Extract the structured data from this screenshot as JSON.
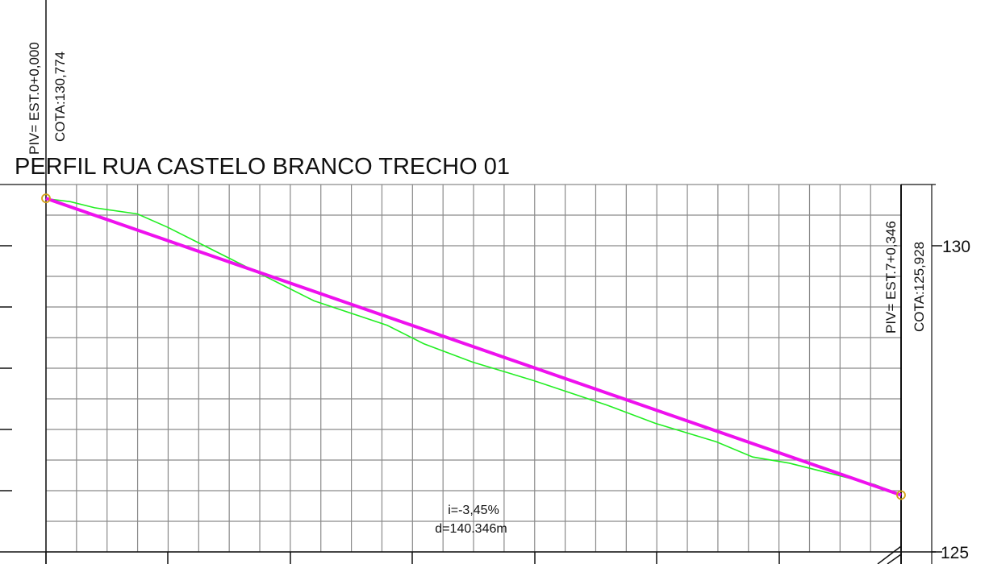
{
  "title": "PERFIL RUA CASTELO BRANCO TRECHO 01",
  "piv_start": {
    "station": "PIV= EST.0+0,000",
    "elevation": "COTA:130,774"
  },
  "piv_end": {
    "station": "PIV= EST.7+0,346",
    "elevation": "COTA:125,928"
  },
  "slope": {
    "grade": "i=-3,45%",
    "distance": "d=140.346m"
  },
  "axis": {
    "label_130": "130",
    "label_125": "125"
  },
  "colors": {
    "grid": "#8a8a8a",
    "terrain": "#22ee22",
    "grade_line": "#ee11ee",
    "piv_marker": "#d4a017",
    "ink": "#111111"
  },
  "chart_data": {
    "type": "line",
    "title": "PERFIL RUA CASTELO BRANCO TRECHO 01",
    "xlabel": "",
    "ylabel": "",
    "xlim": [
      0,
      140.346
    ],
    "ylim": [
      125,
      131.1
    ],
    "yticks": [
      125,
      130
    ],
    "series": [
      {
        "x": [
          0,
          4,
          8,
          15,
          20,
          28,
          36,
          44,
          56,
          62,
          70,
          80,
          92,
          100,
          110,
          116,
          122,
          128,
          136,
          140.346
        ],
        "y": [
          130.77,
          130.72,
          130.62,
          130.52,
          130.3,
          129.9,
          129.5,
          129.1,
          128.7,
          128.4,
          128.1,
          127.8,
          127.4,
          127.1,
          126.8,
          126.55,
          126.45,
          126.3,
          126.1,
          125.93
        ]
      },
      {
        "x": [
          0,
          140.346
        ],
        "y": [
          130.774,
          125.928
        ]
      }
    ],
    "piv_points": [
      {
        "x": 0,
        "y": 130.774
      },
      {
        "x": 140.346,
        "y": 125.928
      }
    ]
  }
}
